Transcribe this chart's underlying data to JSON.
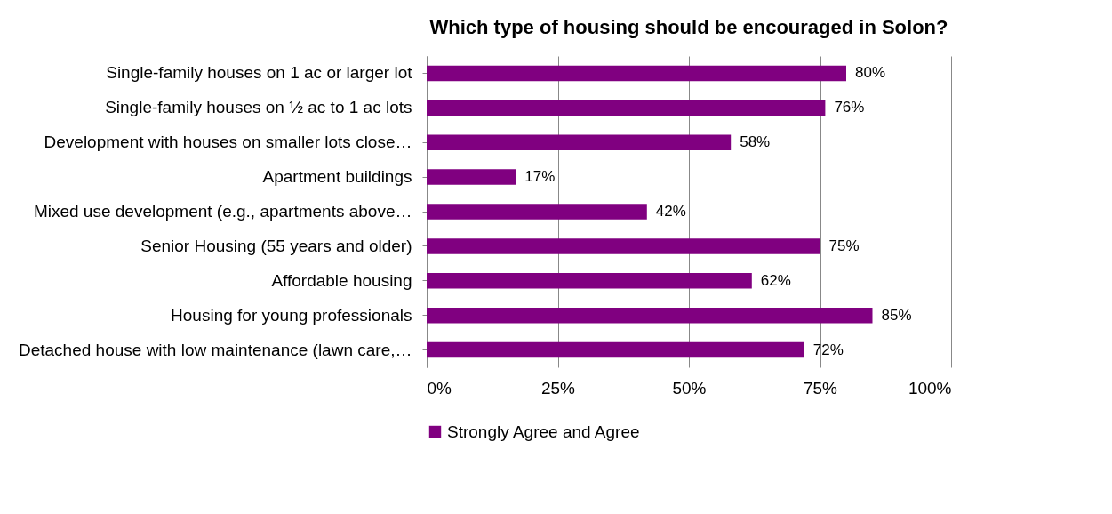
{
  "chart_data": {
    "type": "bar",
    "orientation": "horizontal",
    "title": "Which type of housing should be encouraged in Solon?",
    "categories": [
      "Single-family houses on 1 ac or larger lot",
      "Single-family houses on ½ ac to 1 ac lots",
      "Development with houses on smaller lots close…",
      "Apartment buildings",
      "Mixed use development (e.g., apartments above…",
      "Senior Housing (55 years and older)",
      "Affordable housing",
      "Housing for young professionals",
      "Detached house with low maintenance (lawn care,…"
    ],
    "series": [
      {
        "name": "Strongly Agree and Agree",
        "color": "#800080",
        "values": [
          80,
          76,
          58,
          17,
          42,
          75,
          62,
          85,
          72
        ],
        "value_labels": [
          "80%",
          "76%",
          "58%",
          "17%",
          "42%",
          "75%",
          "62%",
          "85%",
          "72%"
        ]
      }
    ],
    "xlim": [
      0,
      100
    ],
    "xticks": [
      {
        "value": 0,
        "label": "0%"
      },
      {
        "value": 25,
        "label": "25%"
      },
      {
        "value": 50,
        "label": "50%"
      },
      {
        "value": 75,
        "label": "75%"
      },
      {
        "value": 100,
        "label": "100%"
      }
    ],
    "grid": "x",
    "legend": "bottom"
  }
}
